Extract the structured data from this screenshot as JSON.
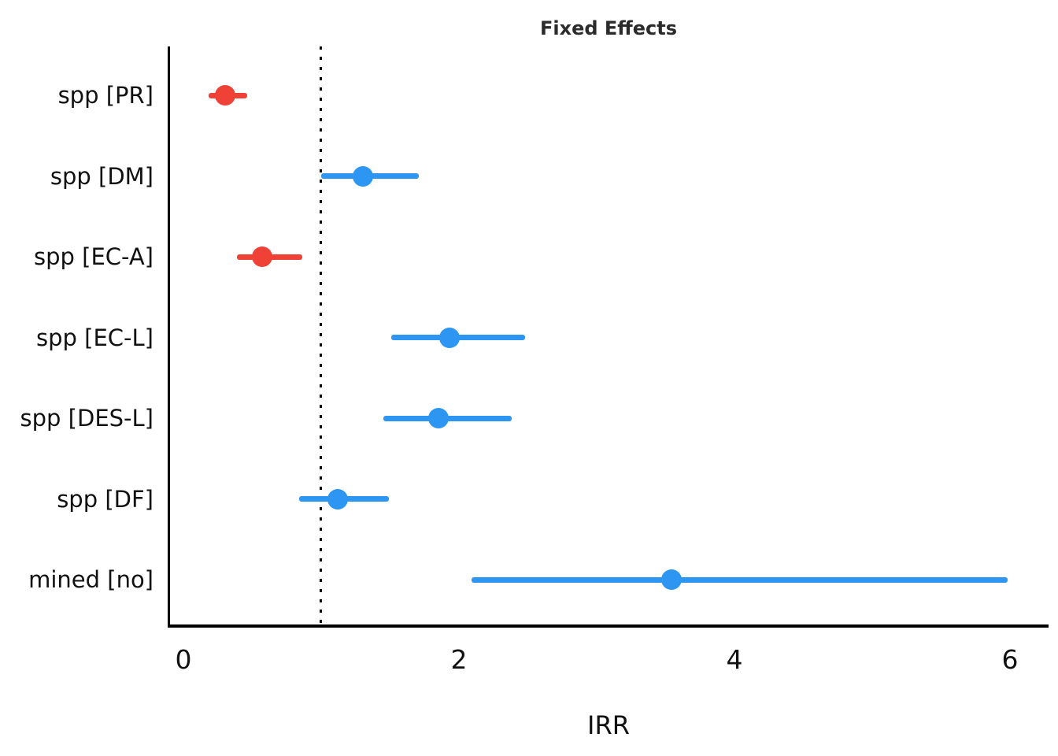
{
  "title": "Fixed Effects",
  "xlabel": "IRR",
  "colors": {
    "positive": "#2d96f2",
    "negative": "#f04136",
    "axis": "#000000",
    "title": "#2b2b2b",
    "text": "#111111"
  },
  "chart_data": {
    "type": "scatter",
    "subtype": "forest-plot",
    "title": "Fixed Effects",
    "xlabel": "IRR",
    "ylabel": "",
    "x_ticks": [
      0,
      2,
      4,
      6
    ],
    "xlim": [
      -0.11,
      6.28
    ],
    "reference_line_x": 1,
    "grid": false,
    "legend": null,
    "rows": [
      {
        "label": "spp [PR]",
        "estimate": 0.3,
        "ci_low": 0.18,
        "ci_high": 0.46,
        "direction": "negative"
      },
      {
        "label": "spp [DM]",
        "estimate": 1.3,
        "ci_low": 1.0,
        "ci_high": 1.71,
        "direction": "positive"
      },
      {
        "label": "spp [EC-A]",
        "estimate": 0.57,
        "ci_low": 0.39,
        "ci_high": 0.86,
        "direction": "negative"
      },
      {
        "label": "spp [EC-L]",
        "estimate": 1.93,
        "ci_low": 1.51,
        "ci_high": 2.48,
        "direction": "positive"
      },
      {
        "label": "spp [DES-L]",
        "estimate": 1.85,
        "ci_low": 1.45,
        "ci_high": 2.38,
        "direction": "positive"
      },
      {
        "label": "spp [DF]",
        "estimate": 1.12,
        "ci_low": 0.84,
        "ci_high": 1.49,
        "direction": "positive"
      },
      {
        "label": "mined [no]",
        "estimate": 3.54,
        "ci_low": 2.09,
        "ci_high": 5.98,
        "direction": "positive"
      }
    ]
  }
}
